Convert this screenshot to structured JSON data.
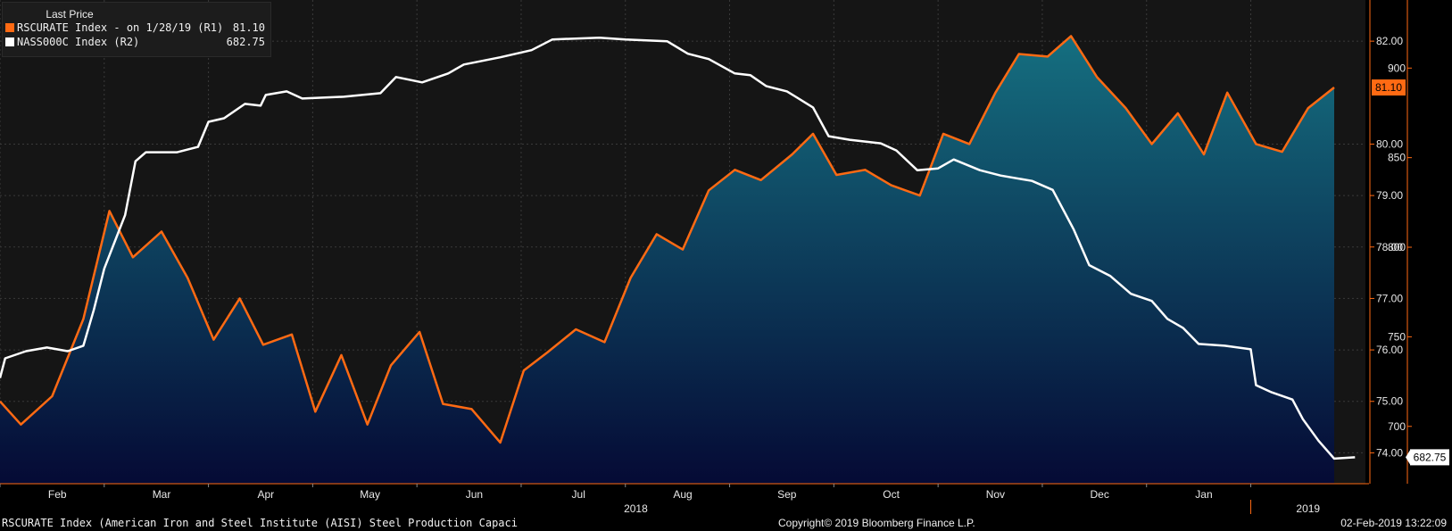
{
  "legend": {
    "title": "Last Price",
    "rows": [
      {
        "label": "RSCURATE Index -  on 1/28/19  (R1)",
        "value": "81.10",
        "color": "#ff6a13"
      },
      {
        "label": "NASS000C Index  (R2)",
        "value": "682.75",
        "color": "#ffffff"
      }
    ]
  },
  "footer": {
    "left": "RSCURATE Index (American Iron and Steel Institute (AISI) Steel Production Capaci",
    "center": "Copyright© 2019 Bloomberg Finance L.P.",
    "right": "02-Feb-2019 13:22:09"
  },
  "colors": {
    "background": "#000000",
    "plot_bg": "#151515",
    "orange": "#ff6a13",
    "white": "#ffffff",
    "area_top": "#156f80",
    "area_bottom": "#050a35"
  },
  "chart_data": {
    "type": "line",
    "x_ticks": [
      "Feb",
      "Mar",
      "Apr",
      "May",
      "Jun",
      "Jul",
      "Aug",
      "Sep",
      "Oct",
      "Nov",
      "Dec",
      "Jan"
    ],
    "year_labels": [
      "2018",
      "2019"
    ],
    "axes": {
      "R1": {
        "ylim": [
          73.4,
          82.8
        ],
        "ticks": [
          "74.00",
          "75.00",
          "76.00",
          "77.00",
          "78.00",
          "79.00",
          "80.00",
          "82.00"
        ],
        "last_value_label": "81.10"
      },
      "R2": {
        "ylim": [
          668,
          938
        ],
        "ticks": [
          "700",
          "750",
          "800",
          "850",
          "900"
        ],
        "last_value_label": "682.75"
      }
    },
    "series": [
      {
        "name": "RSCURATE Index",
        "axis": "R1",
        "style": "area-line",
        "points": [
          [
            0.0,
            75.0
          ],
          [
            0.4,
            74.55
          ],
          [
            1.0,
            75.1
          ],
          [
            1.6,
            76.6
          ],
          [
            2.1,
            78.7
          ],
          [
            2.55,
            77.8
          ],
          [
            3.1,
            78.3
          ],
          [
            3.6,
            77.4
          ],
          [
            4.1,
            76.2
          ],
          [
            4.6,
            77.0
          ],
          [
            5.05,
            76.1
          ],
          [
            5.6,
            76.3
          ],
          [
            6.05,
            74.8
          ],
          [
            6.55,
            75.9
          ],
          [
            7.05,
            74.55
          ],
          [
            7.5,
            75.7
          ],
          [
            8.05,
            76.35
          ],
          [
            8.5,
            74.95
          ],
          [
            9.05,
            74.85
          ],
          [
            9.6,
            74.2
          ],
          [
            10.05,
            75.6
          ],
          [
            10.5,
            75.95
          ],
          [
            11.05,
            76.4
          ],
          [
            11.6,
            76.15
          ],
          [
            12.1,
            77.4
          ],
          [
            12.6,
            78.25
          ],
          [
            13.1,
            77.95
          ],
          [
            13.6,
            79.1
          ],
          [
            14.1,
            79.5
          ],
          [
            14.6,
            79.3
          ],
          [
            15.2,
            79.8
          ],
          [
            15.6,
            80.2
          ],
          [
            16.05,
            79.4
          ],
          [
            16.6,
            79.5
          ],
          [
            17.1,
            79.2
          ],
          [
            17.65,
            79.0
          ],
          [
            18.1,
            80.2
          ],
          [
            18.6,
            80.0
          ],
          [
            19.1,
            81.0
          ],
          [
            19.55,
            81.75
          ],
          [
            20.1,
            81.7
          ],
          [
            20.55,
            82.1
          ],
          [
            21.05,
            81.3
          ],
          [
            21.6,
            80.7
          ],
          [
            22.1,
            80.0
          ],
          [
            22.6,
            80.6
          ],
          [
            23.1,
            79.8
          ],
          [
            23.55,
            81.0
          ],
          [
            24.1,
            80.0
          ],
          [
            24.6,
            79.85
          ],
          [
            25.1,
            80.7
          ],
          [
            25.6,
            81.1
          ]
        ]
      },
      {
        "name": "NASS000C Index",
        "axis": "R2",
        "style": "line",
        "points": [
          [
            0.0,
            727
          ],
          [
            0.1,
            738
          ],
          [
            0.5,
            742
          ],
          [
            0.9,
            744
          ],
          [
            1.3,
            742
          ],
          [
            1.6,
            745
          ],
          [
            1.8,
            765
          ],
          [
            2.0,
            788
          ],
          [
            2.2,
            803
          ],
          [
            2.4,
            818
          ],
          [
            2.6,
            848
          ],
          [
            2.8,
            853
          ],
          [
            3.4,
            853
          ],
          [
            3.8,
            856
          ],
          [
            4.0,
            870
          ],
          [
            4.3,
            872
          ],
          [
            4.7,
            880
          ],
          [
            5.0,
            879
          ],
          [
            5.1,
            885
          ],
          [
            5.5,
            887
          ],
          [
            5.8,
            883
          ],
          [
            6.6,
            884
          ],
          [
            7.3,
            886
          ],
          [
            7.6,
            895
          ],
          [
            8.1,
            892
          ],
          [
            8.6,
            897
          ],
          [
            8.9,
            902
          ],
          [
            9.6,
            906
          ],
          [
            10.2,
            910
          ],
          [
            10.6,
            916
          ],
          [
            11.5,
            917
          ],
          [
            12.0,
            916
          ],
          [
            12.8,
            915
          ],
          [
            13.2,
            908
          ],
          [
            13.6,
            905
          ],
          [
            14.1,
            897
          ],
          [
            14.4,
            896
          ],
          [
            14.7,
            890
          ],
          [
            15.1,
            887
          ],
          [
            15.6,
            878
          ],
          [
            15.9,
            862
          ],
          [
            16.3,
            860
          ],
          [
            16.9,
            858
          ],
          [
            17.2,
            854
          ],
          [
            17.6,
            843
          ],
          [
            18.0,
            844
          ],
          [
            18.3,
            849
          ],
          [
            18.8,
            843
          ],
          [
            19.2,
            840
          ],
          [
            19.8,
            837
          ],
          [
            20.2,
            832
          ],
          [
            20.6,
            810
          ],
          [
            20.9,
            790
          ],
          [
            21.3,
            784
          ],
          [
            21.7,
            774
          ],
          [
            22.1,
            770
          ],
          [
            22.4,
            760
          ],
          [
            22.7,
            755
          ],
          [
            23.0,
            746
          ],
          [
            23.5,
            745
          ],
          [
            24.0,
            743
          ],
          [
            24.1,
            723
          ],
          [
            24.4,
            719
          ],
          [
            24.8,
            715
          ],
          [
            25.0,
            704
          ],
          [
            25.3,
            692
          ],
          [
            25.6,
            682
          ],
          [
            26.0,
            682.75
          ]
        ]
      }
    ]
  }
}
